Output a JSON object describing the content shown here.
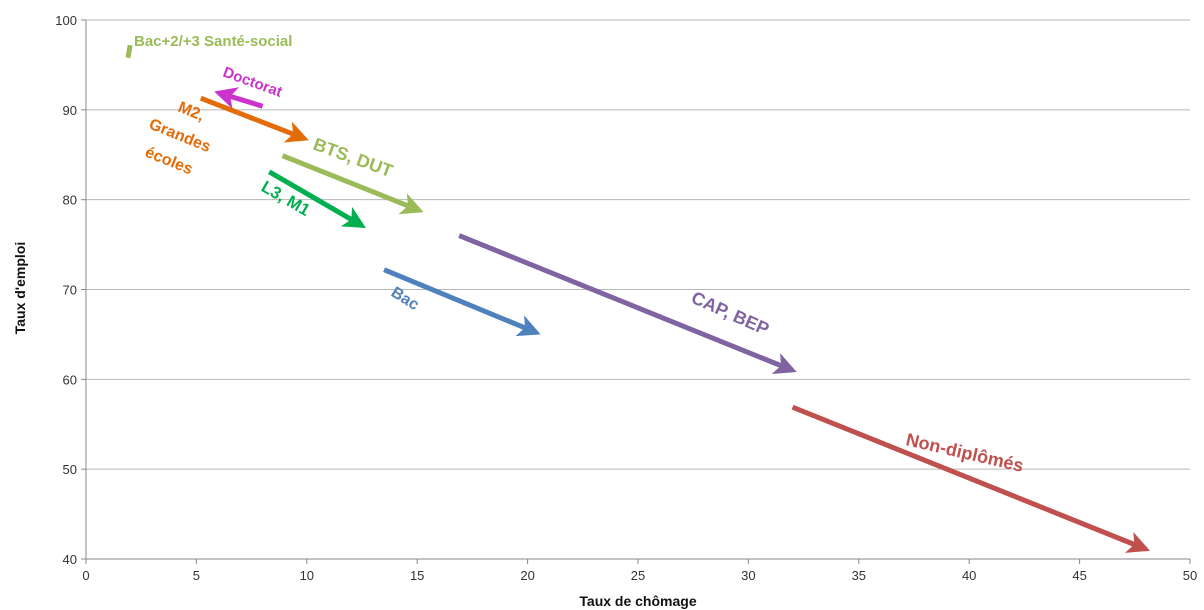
{
  "chart_data": {
    "type": "scatter",
    "title": "",
    "xlabel": "Taux de chômage",
    "ylabel": "Taux d'emploi",
    "xlim": [
      0,
      50
    ],
    "ylim": [
      40,
      100
    ],
    "xticks": [
      0,
      5,
      10,
      15,
      20,
      25,
      30,
      35,
      40,
      45,
      50
    ],
    "yticks": [
      40,
      50,
      60,
      70,
      80,
      90,
      100
    ],
    "grid": "horizontal",
    "series": [
      {
        "name": "Bac+2/+3 Santé-social",
        "color": "#9bbb59",
        "from": [
          1.9,
          95.8
        ],
        "to": [
          2.0,
          97.2
        ],
        "arrow": false
      },
      {
        "name": "Doctorat",
        "color": "#cc33cc",
        "from": [
          8.0,
          90.4
        ],
        "to": [
          6.0,
          91.9
        ],
        "arrow": true
      },
      {
        "name": "M2, Grandes écoles",
        "color": "#e36c09",
        "from": [
          5.2,
          91.3
        ],
        "to": [
          9.9,
          86.8
        ],
        "arrow": true
      },
      {
        "name": "BTS, DUT",
        "color": "#9bbb59",
        "from": [
          8.9,
          84.9
        ],
        "to": [
          15.1,
          78.8
        ],
        "arrow": true
      },
      {
        "name": "L3, M1",
        "color": "#00b050",
        "from": [
          8.3,
          83.1
        ],
        "to": [
          12.5,
          77.1
        ],
        "arrow": true
      },
      {
        "name": "Bac",
        "color": "#4f81bd",
        "from": [
          13.5,
          72.2
        ],
        "to": [
          20.4,
          65.2
        ],
        "arrow": true
      },
      {
        "name": "CAP, BEP",
        "color": "#8064a2",
        "from": [
          16.9,
          76.0
        ],
        "to": [
          32.0,
          61.0
        ],
        "arrow": true
      },
      {
        "name": "Non-diplômés",
        "color": "#c0504d",
        "from": [
          32.0,
          56.9
        ],
        "to": [
          48.0,
          41.1
        ],
        "arrow": true
      }
    ]
  }
}
